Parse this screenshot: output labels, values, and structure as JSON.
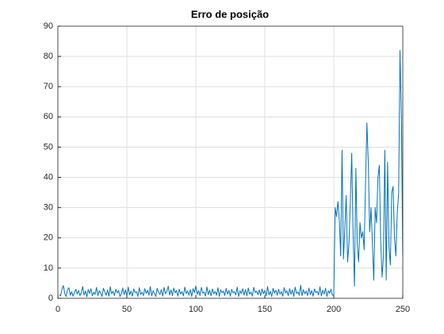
{
  "chart_data": {
    "type": "line",
    "title": "Erro de posição",
    "color": "#0072bd",
    "grid": true,
    "xlim": [
      0,
      250
    ],
    "xticks": [
      0,
      50,
      100,
      150,
      200,
      250
    ],
    "ylim": [
      0,
      90
    ],
    "yticks": [
      0,
      10,
      20,
      30,
      40,
      50,
      60,
      70,
      80,
      90
    ],
    "x": [
      1,
      2,
      3,
      4,
      5,
      6,
      7,
      8,
      9,
      10,
      11,
      12,
      13,
      14,
      15,
      16,
      17,
      18,
      19,
      20,
      21,
      22,
      23,
      24,
      25,
      26,
      27,
      28,
      29,
      30,
      31,
      32,
      33,
      34,
      35,
      36,
      37,
      38,
      39,
      40,
      41,
      42,
      43,
      44,
      45,
      46,
      47,
      48,
      49,
      50,
      51,
      52,
      53,
      54,
      55,
      56,
      57,
      58,
      59,
      60,
      61,
      62,
      63,
      64,
      65,
      66,
      67,
      68,
      69,
      70,
      71,
      72,
      73,
      74,
      75,
      76,
      77,
      78,
      79,
      80,
      81,
      82,
      83,
      84,
      85,
      86,
      87,
      88,
      89,
      90,
      91,
      92,
      93,
      94,
      95,
      96,
      97,
      98,
      99,
      100,
      101,
      102,
      103,
      104,
      105,
      106,
      107,
      108,
      109,
      110,
      111,
      112,
      113,
      114,
      115,
      116,
      117,
      118,
      119,
      120,
      121,
      122,
      123,
      124,
      125,
      126,
      127,
      128,
      129,
      130,
      131,
      132,
      133,
      134,
      135,
      136,
      137,
      138,
      139,
      140,
      141,
      142,
      143,
      144,
      145,
      146,
      147,
      148,
      149,
      150,
      151,
      152,
      153,
      154,
      155,
      156,
      157,
      158,
      159,
      160,
      161,
      162,
      163,
      164,
      165,
      166,
      167,
      168,
      169,
      170,
      171,
      172,
      173,
      174,
      175,
      176,
      177,
      178,
      179,
      180,
      181,
      182,
      183,
      184,
      185,
      186,
      187,
      188,
      189,
      190,
      191,
      192,
      193,
      194,
      195,
      196,
      197,
      198,
      199,
      200,
      201,
      202,
      203,
      204,
      205,
      206,
      207,
      208,
      209,
      210,
      211,
      212,
      213,
      214,
      215,
      216,
      217,
      218,
      219,
      220,
      221,
      222,
      223,
      224,
      225,
      226,
      227,
      228,
      229,
      230,
      231,
      232,
      233,
      234,
      235,
      236,
      237,
      238,
      239,
      240,
      241,
      242,
      243,
      244,
      245,
      246,
      247,
      248,
      249,
      250
    ],
    "values": [
      1.2,
      0.8,
      3.1,
      4.2,
      1.5,
      0.6,
      2.8,
      3.5,
      1.0,
      2.2,
      0.7,
      1.9,
      3.0,
      1.4,
      2.6,
      0.9,
      1.8,
      3.9,
      1.1,
      2.4,
      0.5,
      2.9,
      1.6,
      3.2,
      0.8,
      2.0,
      1.3,
      3.6,
      0.9,
      2.5,
      1.7,
      0.6,
      3.3,
      2.1,
      1.0,
      2.7,
      0.7,
      3.8,
      1.5,
      2.3,
      0.9,
      3.0,
      1.8,
      2.6,
      0.6,
      1.4,
      3.4,
      1.2,
      2.8,
      0.8,
      3.7,
      1.1,
      2.4,
      0.7,
      3.1,
      1.9,
      2.2,
      0.6,
      3.5,
      1.3,
      2.0,
      0.9,
      3.2,
      1.6,
      2.7,
      1.0,
      3.9,
      0.8,
      2.5,
      1.7,
      0.6,
      3.3,
      2.1,
      1.2,
      2.9,
      0.7,
      3.6,
      1.5,
      2.3,
      4.0,
      1.1,
      2.8,
      0.9,
      3.4,
      1.8,
      2.6,
      0.7,
      3.0,
      1.4,
      2.2,
      0.8,
      3.7,
      1.6,
      2.4,
      1.0,
      2.9,
      0.6,
      3.2,
      1.9,
      4.1,
      1.3,
      2.5,
      0.9,
      3.6,
      1.7,
      2.1,
      0.7,
      3.8,
      1.2,
      2.7,
      0.8,
      3.1,
      1.5,
      2.3,
      1.0,
      3.5,
      0.6,
      2.8,
      1.9,
      2.4,
      0.9,
      3.3,
      1.4,
      2.6,
      0.7,
      3.0,
      1.8,
      2.2,
      1.1,
      3.7,
      0.6,
      2.5,
      1.6,
      3.2,
      1.0,
      2.9,
      0.8,
      3.4,
      1.3,
      2.1,
      0.7,
      3.6,
      1.9,
      2.4,
      1.2,
      2.8,
      0.9,
      3.1,
      1.5,
      2.6,
      0.8,
      3.9,
      1.1,
      2.3,
      0.6,
      3.3,
      1.7,
      2.7,
      1.0,
      3.0,
      1.4,
      2.2,
      0.7,
      3.5,
      1.8,
      2.5,
      0.9,
      3.2,
      1.3,
      2.8,
      0.6,
      3.7,
      1.6,
      2.1,
      1.0,
      4.3,
      0.8,
      2.9,
      1.5,
      2.4,
      0.9,
      3.4,
      1.2,
      2.6,
      0.7,
      3.1,
      1.9,
      2.3,
      1.1,
      3.8,
      0.8,
      2.7,
      1.4,
      3.3,
      0.6,
      2.5,
      1.7,
      3.0,
      1.0,
      1.2,
      30,
      27,
      32,
      26,
      14,
      49,
      13,
      23,
      34,
      12,
      18,
      32,
      48,
      21,
      4,
      43,
      18,
      12,
      25,
      20,
      22,
      16,
      38,
      58,
      45,
      22,
      30,
      18,
      6,
      30,
      25,
      40,
      44,
      19,
      7,
      14,
      49,
      6,
      45,
      17,
      11,
      35,
      37,
      20,
      14,
      28,
      35,
      82,
      60,
      14
    ]
  }
}
